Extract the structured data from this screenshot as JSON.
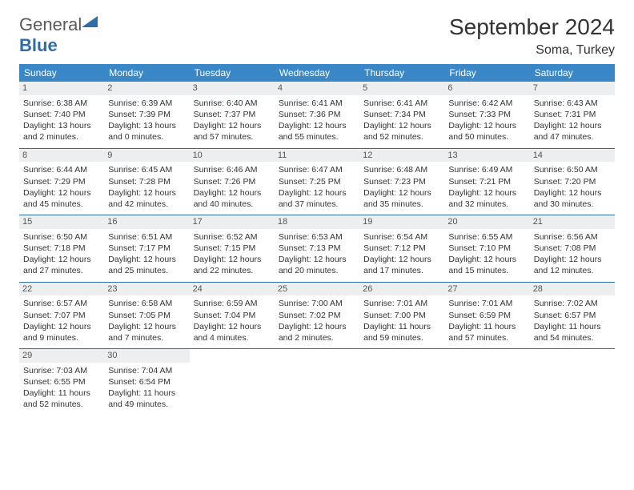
{
  "logo": {
    "text1": "General",
    "text2": "Blue"
  },
  "title": "September 2024",
  "location": "Soma, Turkey",
  "colors": {
    "header_bg": "#3a87c8",
    "header_fg": "#ffffff",
    "daynum_bg": "#eceeef",
    "border": "#2f6da8",
    "logo_blue": "#2f6da8",
    "logo_gray": "#5a5a5a"
  },
  "weekdays": [
    "Sunday",
    "Monday",
    "Tuesday",
    "Wednesday",
    "Thursday",
    "Friday",
    "Saturday"
  ],
  "days": [
    {
      "n": "1",
      "sr": "Sunrise: 6:38 AM",
      "ss": "Sunset: 7:40 PM",
      "d1": "Daylight: 13 hours",
      "d2": "and 2 minutes."
    },
    {
      "n": "2",
      "sr": "Sunrise: 6:39 AM",
      "ss": "Sunset: 7:39 PM",
      "d1": "Daylight: 13 hours",
      "d2": "and 0 minutes."
    },
    {
      "n": "3",
      "sr": "Sunrise: 6:40 AM",
      "ss": "Sunset: 7:37 PM",
      "d1": "Daylight: 12 hours",
      "d2": "and 57 minutes."
    },
    {
      "n": "4",
      "sr": "Sunrise: 6:41 AM",
      "ss": "Sunset: 7:36 PM",
      "d1": "Daylight: 12 hours",
      "d2": "and 55 minutes."
    },
    {
      "n": "5",
      "sr": "Sunrise: 6:41 AM",
      "ss": "Sunset: 7:34 PM",
      "d1": "Daylight: 12 hours",
      "d2": "and 52 minutes."
    },
    {
      "n": "6",
      "sr": "Sunrise: 6:42 AM",
      "ss": "Sunset: 7:33 PM",
      "d1": "Daylight: 12 hours",
      "d2": "and 50 minutes."
    },
    {
      "n": "7",
      "sr": "Sunrise: 6:43 AM",
      "ss": "Sunset: 7:31 PM",
      "d1": "Daylight: 12 hours",
      "d2": "and 47 minutes."
    },
    {
      "n": "8",
      "sr": "Sunrise: 6:44 AM",
      "ss": "Sunset: 7:29 PM",
      "d1": "Daylight: 12 hours",
      "d2": "and 45 minutes."
    },
    {
      "n": "9",
      "sr": "Sunrise: 6:45 AM",
      "ss": "Sunset: 7:28 PM",
      "d1": "Daylight: 12 hours",
      "d2": "and 42 minutes."
    },
    {
      "n": "10",
      "sr": "Sunrise: 6:46 AM",
      "ss": "Sunset: 7:26 PM",
      "d1": "Daylight: 12 hours",
      "d2": "and 40 minutes."
    },
    {
      "n": "11",
      "sr": "Sunrise: 6:47 AM",
      "ss": "Sunset: 7:25 PM",
      "d1": "Daylight: 12 hours",
      "d2": "and 37 minutes."
    },
    {
      "n": "12",
      "sr": "Sunrise: 6:48 AM",
      "ss": "Sunset: 7:23 PM",
      "d1": "Daylight: 12 hours",
      "d2": "and 35 minutes."
    },
    {
      "n": "13",
      "sr": "Sunrise: 6:49 AM",
      "ss": "Sunset: 7:21 PM",
      "d1": "Daylight: 12 hours",
      "d2": "and 32 minutes."
    },
    {
      "n": "14",
      "sr": "Sunrise: 6:50 AM",
      "ss": "Sunset: 7:20 PM",
      "d1": "Daylight: 12 hours",
      "d2": "and 30 minutes."
    },
    {
      "n": "15",
      "sr": "Sunrise: 6:50 AM",
      "ss": "Sunset: 7:18 PM",
      "d1": "Daylight: 12 hours",
      "d2": "and 27 minutes."
    },
    {
      "n": "16",
      "sr": "Sunrise: 6:51 AM",
      "ss": "Sunset: 7:17 PM",
      "d1": "Daylight: 12 hours",
      "d2": "and 25 minutes."
    },
    {
      "n": "17",
      "sr": "Sunrise: 6:52 AM",
      "ss": "Sunset: 7:15 PM",
      "d1": "Daylight: 12 hours",
      "d2": "and 22 minutes."
    },
    {
      "n": "18",
      "sr": "Sunrise: 6:53 AM",
      "ss": "Sunset: 7:13 PM",
      "d1": "Daylight: 12 hours",
      "d2": "and 20 minutes."
    },
    {
      "n": "19",
      "sr": "Sunrise: 6:54 AM",
      "ss": "Sunset: 7:12 PM",
      "d1": "Daylight: 12 hours",
      "d2": "and 17 minutes."
    },
    {
      "n": "20",
      "sr": "Sunrise: 6:55 AM",
      "ss": "Sunset: 7:10 PM",
      "d1": "Daylight: 12 hours",
      "d2": "and 15 minutes."
    },
    {
      "n": "21",
      "sr": "Sunrise: 6:56 AM",
      "ss": "Sunset: 7:08 PM",
      "d1": "Daylight: 12 hours",
      "d2": "and 12 minutes."
    },
    {
      "n": "22",
      "sr": "Sunrise: 6:57 AM",
      "ss": "Sunset: 7:07 PM",
      "d1": "Daylight: 12 hours",
      "d2": "and 9 minutes."
    },
    {
      "n": "23",
      "sr": "Sunrise: 6:58 AM",
      "ss": "Sunset: 7:05 PM",
      "d1": "Daylight: 12 hours",
      "d2": "and 7 minutes."
    },
    {
      "n": "24",
      "sr": "Sunrise: 6:59 AM",
      "ss": "Sunset: 7:04 PM",
      "d1": "Daylight: 12 hours",
      "d2": "and 4 minutes."
    },
    {
      "n": "25",
      "sr": "Sunrise: 7:00 AM",
      "ss": "Sunset: 7:02 PM",
      "d1": "Daylight: 12 hours",
      "d2": "and 2 minutes."
    },
    {
      "n": "26",
      "sr": "Sunrise: 7:01 AM",
      "ss": "Sunset: 7:00 PM",
      "d1": "Daylight: 11 hours",
      "d2": "and 59 minutes."
    },
    {
      "n": "27",
      "sr": "Sunrise: 7:01 AM",
      "ss": "Sunset: 6:59 PM",
      "d1": "Daylight: 11 hours",
      "d2": "and 57 minutes."
    },
    {
      "n": "28",
      "sr": "Sunrise: 7:02 AM",
      "ss": "Sunset: 6:57 PM",
      "d1": "Daylight: 11 hours",
      "d2": "and 54 minutes."
    },
    {
      "n": "29",
      "sr": "Sunrise: 7:03 AM",
      "ss": "Sunset: 6:55 PM",
      "d1": "Daylight: 11 hours",
      "d2": "and 52 minutes."
    },
    {
      "n": "30",
      "sr": "Sunrise: 7:04 AM",
      "ss": "Sunset: 6:54 PM",
      "d1": "Daylight: 11 hours",
      "d2": "and 49 minutes."
    }
  ]
}
